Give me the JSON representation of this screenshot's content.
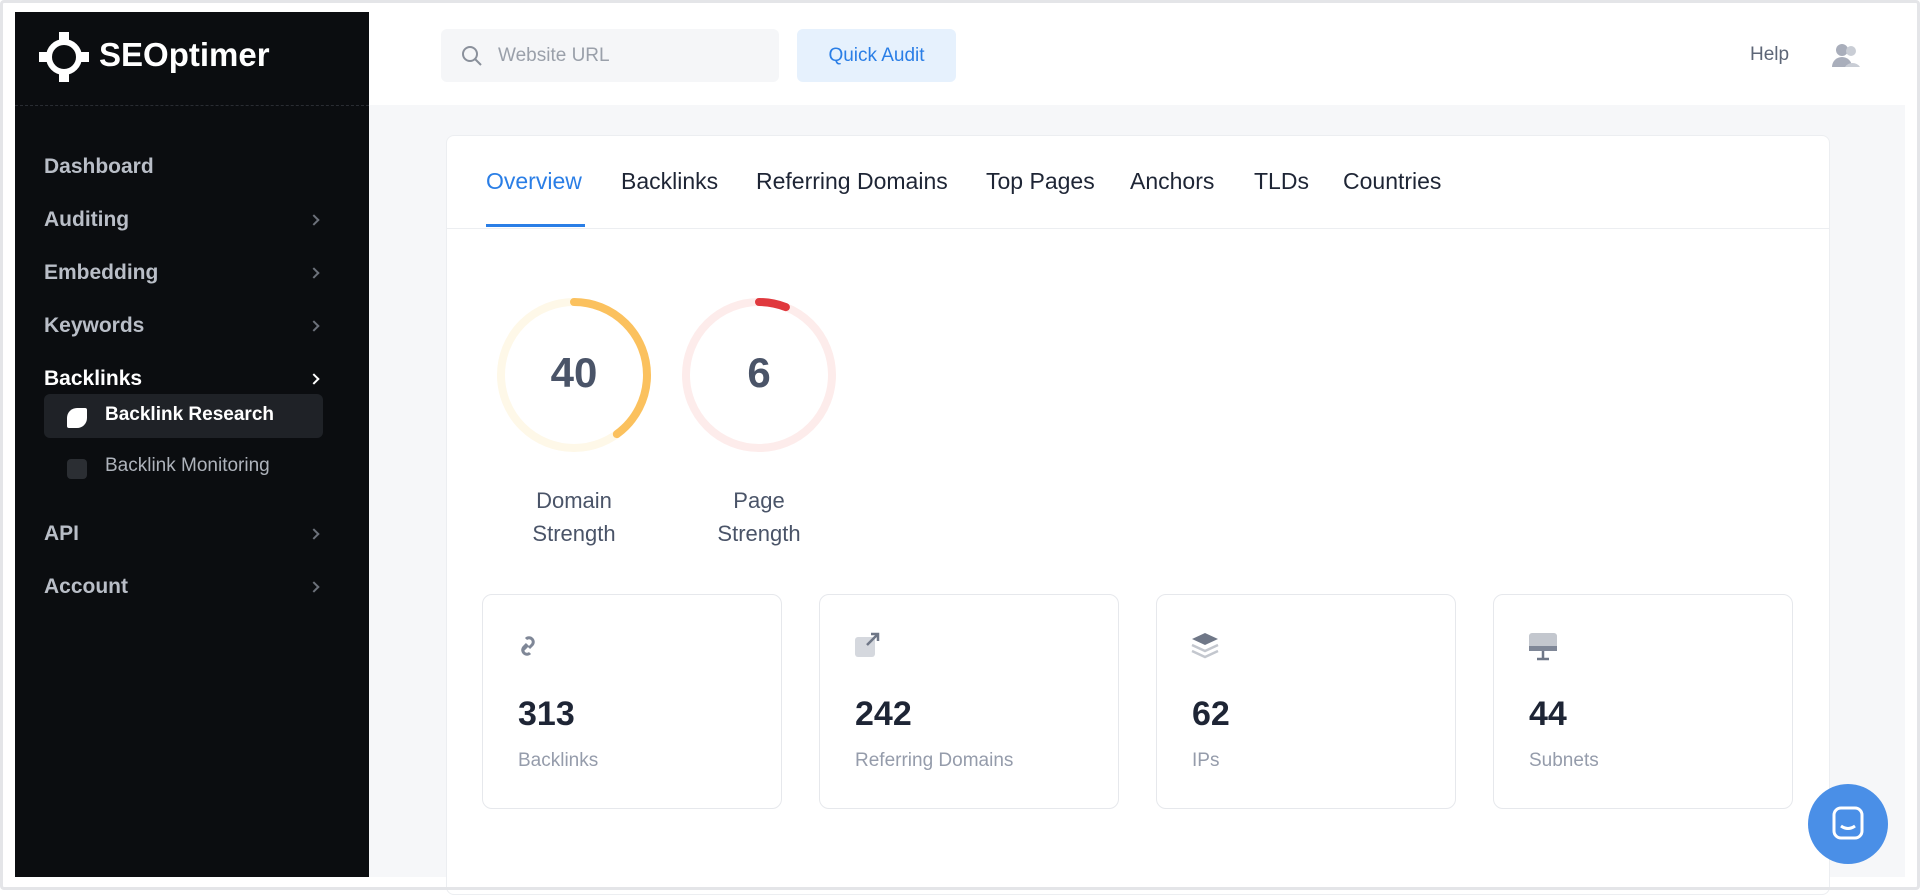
{
  "sidebar": {
    "brand": "SEOptimer",
    "nav": [
      "Dashboard",
      "Auditing",
      "Embedding",
      "Keywords",
      "Backlinks"
    ],
    "subnav": [
      "Backlink Research",
      "Backlink Monitoring"
    ],
    "nav_bottom": [
      "API",
      "Account"
    ]
  },
  "header": {
    "search_placeholder": "Website URL",
    "button": "Quick Audit",
    "help": "Help"
  },
  "tabs": [
    "Overview",
    "Backlinks",
    "Referring Domains",
    "Top Pages",
    "Anchors",
    "TLDs",
    "Countries"
  ],
  "gauges": [
    {
      "value": 40,
      "label": "Domain Strength",
      "color": "#fbc15e",
      "track": "#fef8e8"
    },
    {
      "value": 6,
      "label": "Page Strength",
      "color": "#e0393e",
      "track": "#fdeceb"
    }
  ],
  "stats": [
    {
      "value": "313",
      "label": "Backlinks"
    },
    {
      "value": "242",
      "label": "Referring Domains"
    },
    {
      "value": "62",
      "label": "IPs"
    },
    {
      "value": "44",
      "label": "Subnets"
    }
  ]
}
